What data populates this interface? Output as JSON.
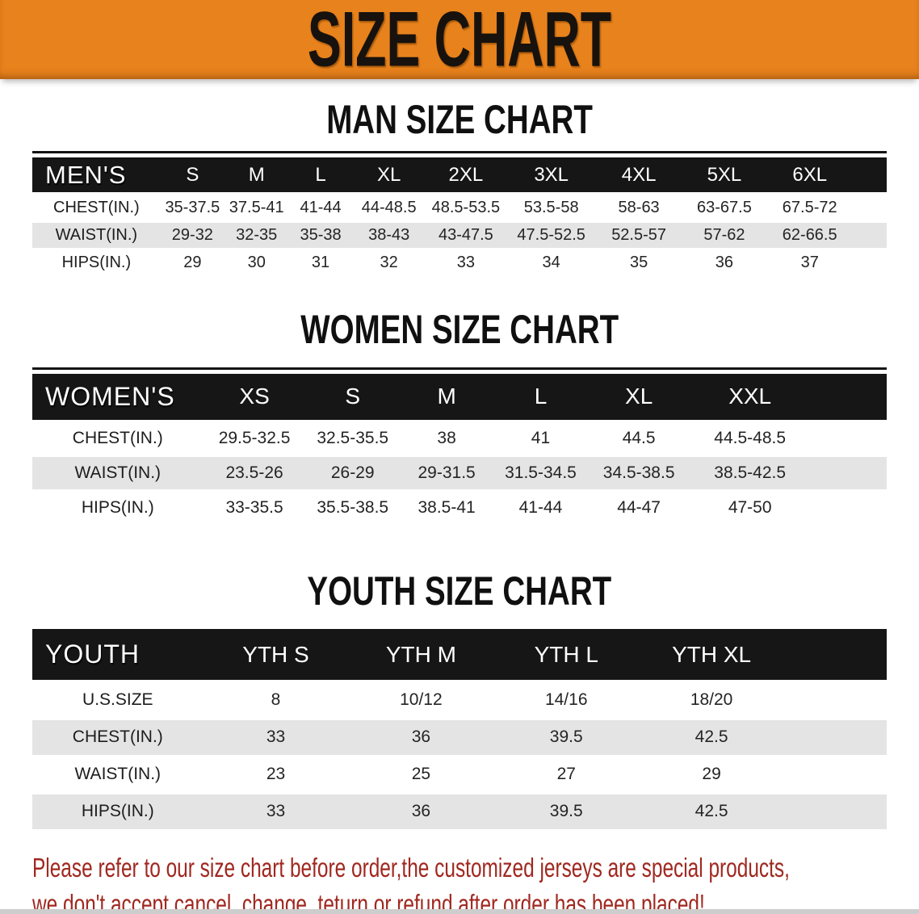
{
  "banner": {
    "title": "SIZE CHART"
  },
  "colors": {
    "banner_bg": "#E8821C",
    "header_bar": "#161616",
    "row_stripe": "#E4E4E4",
    "disclaimer_red": "#A02820"
  },
  "sections": [
    {
      "title": "MAN SIZE CHART",
      "table": {
        "corner": "MEN'S",
        "columns": [
          "S",
          "M",
          "L",
          "XL",
          "2XL",
          "3XL",
          "4XL",
          "5XL",
          "6XL"
        ],
        "rows": [
          {
            "label": "CHEST(IN.)",
            "values": [
              "35-37.5",
              "37.5-41",
              "41-44",
              "44-48.5",
              "48.5-53.5",
              "53.5-58",
              "58-63",
              "63-67.5",
              "67.5-72"
            ]
          },
          {
            "label": "WAIST(IN.)",
            "values": [
              "29-32",
              "32-35",
              "35-38",
              "38-43",
              "43-47.5",
              "47.5-52.5",
              "52.5-57",
              "57-62",
              "62-66.5"
            ]
          },
          {
            "label": "HIPS(IN.)",
            "values": [
              "29",
              "30",
              "31",
              "32",
              "33",
              "34",
              "35",
              "36",
              "37"
            ]
          }
        ]
      }
    },
    {
      "title": "WOMEN SIZE CHART",
      "table": {
        "corner": "WOMEN'S",
        "columns": [
          "XS",
          "S",
          "M",
          "L",
          "XL",
          "XXL"
        ],
        "rows": [
          {
            "label": "CHEST(IN.)",
            "values": [
              "29.5-32.5",
              "32.5-35.5",
              "38",
              "41",
              "44.5",
              "44.5-48.5"
            ]
          },
          {
            "label": "WAIST(IN.)",
            "values": [
              "23.5-26",
              "26-29",
              "29-31.5",
              "31.5-34.5",
              "34.5-38.5",
              "38.5-42.5"
            ]
          },
          {
            "label": "HIPS(IN.)",
            "values": [
              "33-35.5",
              "35.5-38.5",
              "38.5-41",
              "41-44",
              "44-47",
              "47-50"
            ]
          }
        ]
      }
    },
    {
      "title": "YOUTH SIZE CHART",
      "table": {
        "corner": "YOUTH",
        "columns": [
          "YTH S",
          "YTH M",
          "YTH L",
          "YTH XL"
        ],
        "rows": [
          {
            "label": "U.S.SIZE",
            "values": [
              "8",
              "10/12",
              "14/16",
              "18/20"
            ]
          },
          {
            "label": "CHEST(IN.)",
            "values": [
              "33",
              "36",
              "39.5",
              "42.5"
            ]
          },
          {
            "label": "WAIST(IN.)",
            "values": [
              "23",
              "25",
              "27",
              "29"
            ]
          },
          {
            "label": "HIPS(IN.)",
            "values": [
              "33",
              "36",
              "39.5",
              "42.5"
            ]
          }
        ]
      }
    }
  ],
  "disclaimer": {
    "line1": "Please refer to our size chart before order,the customized jerseys are special products,",
    "line2": "we don't accept cancel, change, teturn or refund after order has been placed!"
  }
}
